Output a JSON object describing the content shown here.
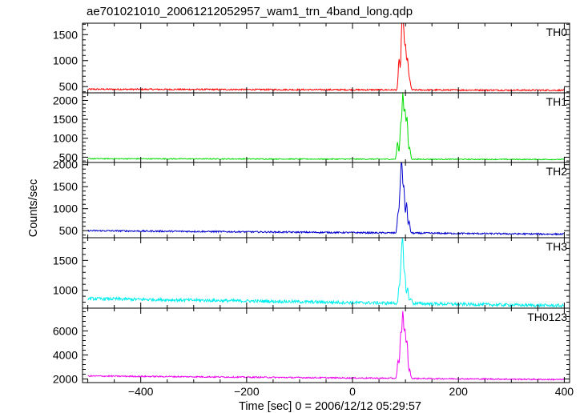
{
  "chart_data": {
    "type": "line",
    "title": "ae701021010_20061212052957_wam1_trn_4band_long.qdp",
    "xlabel": "Time [sec] 0 = 2006/12/12 05:29:57",
    "ylabel": "Counts/sec",
    "xlim": [
      -510,
      410
    ],
    "x_ticks": [
      -400,
      -200,
      0,
      200,
      400
    ],
    "x_tick_labels": [
      "−400",
      "−200",
      "0",
      "200",
      "400"
    ],
    "data_range": [
      -500,
      400
    ],
    "grid": false,
    "legend": "none",
    "panels": [
      {
        "name": "TH0",
        "color": "#ff0000",
        "ylim": [
          380,
          1720
        ],
        "ticks": [
          500,
          1000,
          1500
        ],
        "tick_labels": [
          "500",
          "1000",
          "1500"
        ],
        "baseline": [
          [
            -500,
            450
          ],
          [
            400,
            430
          ]
        ],
        "noise": 14,
        "peaks": [
          [
            88,
            600
          ],
          [
            93,
            1050
          ],
          [
            96,
            1250
          ],
          [
            100,
            800
          ],
          [
            104,
            560
          ],
          [
            108,
            200
          ]
        ]
      },
      {
        "name": "TH1",
        "color": "#00dd00",
        "ylim": [
          360,
          2200
        ],
        "ticks": [
          500,
          1000,
          1500,
          2000
        ],
        "tick_labels": [
          "500",
          "1000",
          "1500",
          "2000"
        ],
        "baseline": [
          [
            -500,
            460
          ],
          [
            400,
            440
          ]
        ],
        "noise": 13,
        "peaks": [
          [
            85,
            450
          ],
          [
            91,
            900
          ],
          [
            95,
            1700
          ],
          [
            99,
            1250
          ],
          [
            103,
            1050
          ],
          [
            108,
            300
          ]
        ]
      },
      {
        "name": "TH2",
        "color": "#0000cc",
        "ylim": [
          340,
          2050
        ],
        "ticks": [
          500,
          1000,
          1500,
          2000
        ],
        "tick_labels": [
          "500",
          "1000",
          "1500",
          "2000"
        ],
        "baseline": [
          [
            -500,
            500
          ],
          [
            400,
            420
          ]
        ],
        "noise": 18,
        "peaks": [
          [
            86,
            450
          ],
          [
            90,
            850
          ],
          [
            93,
            1550
          ],
          [
            97,
            1000
          ],
          [
            102,
            700
          ],
          [
            107,
            250
          ]
        ]
      },
      {
        "name": "TH3",
        "color": "#00eeee",
        "ylim": [
          700,
          1880
        ],
        "ticks": [
          1000,
          1500
        ],
        "tick_labels": [
          "1000",
          "1500"
        ],
        "baseline": [
          [
            -500,
            860
          ],
          [
            400,
            740
          ]
        ],
        "noise": 26,
        "peaks": [
          [
            88,
            250
          ],
          [
            92,
            650
          ],
          [
            95,
            950
          ],
          [
            99,
            450
          ],
          [
            104,
            250
          ],
          [
            110,
            100
          ]
        ]
      },
      {
        "name": "TH0123",
        "color": "#ee00ee",
        "ylim": [
          1700,
          7900
        ],
        "ticks": [
          2000,
          4000,
          6000
        ],
        "tick_labels": [
          "2000",
          "4000",
          "6000"
        ],
        "baseline": [
          [
            -500,
            2250
          ],
          [
            400,
            1950
          ]
        ],
        "noise": 55,
        "peaks": [
          [
            86,
            1500
          ],
          [
            91,
            3600
          ],
          [
            95,
            5400
          ],
          [
            99,
            3900
          ],
          [
            103,
            3000
          ],
          [
            108,
            700
          ]
        ]
      }
    ]
  }
}
